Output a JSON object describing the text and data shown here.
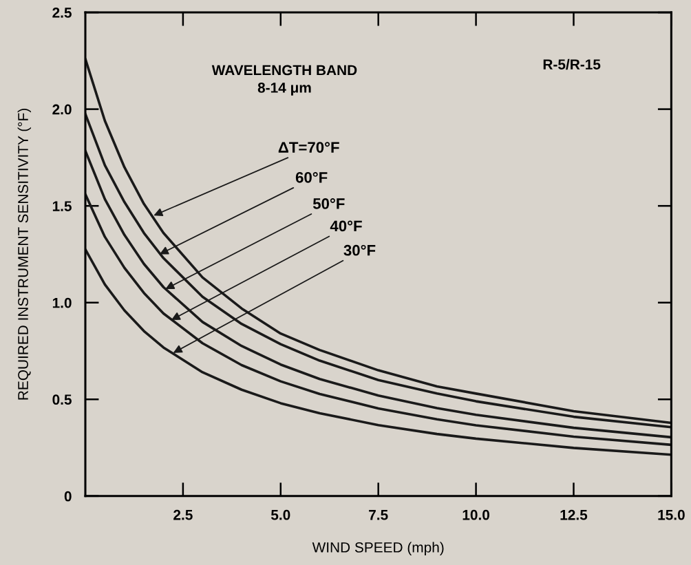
{
  "chart_data": {
    "type": "line",
    "xlabel": "WIND SPEED (mph)",
    "ylabel": "REQUIRED INSTRUMENT SENSITIVITY (°F)",
    "xlim": [
      0,
      15
    ],
    "xticks": [
      2.5,
      {
        "value": 5,
        "label": "5.0"
      },
      7.5,
      {
        "value": 10,
        "label": "10.0"
      },
      12.5,
      {
        "value": 15,
        "label": "15.0"
      }
    ],
    "ylim": [
      0,
      2.5
    ],
    "yticks": [
      0,
      0.5,
      {
        "value": 1,
        "label": "1.0"
      },
      1.5,
      {
        "value": 2,
        "label": "2.0"
      },
      2.5
    ],
    "grid": false,
    "legend": false,
    "line_style": "solid",
    "marker": "none",
    "x": [
      0,
      0.5,
      1,
      1.5,
      2,
      3,
      4,
      5,
      6,
      7.5,
      9,
      10,
      12.5,
      15
    ],
    "series": [
      {
        "color": "#1a1a1a",
        "values": [
          2.26,
          1.94,
          1.7,
          1.51,
          1.36,
          1.13,
          0.97,
          0.84,
          0.755,
          0.65,
          0.567,
          0.53,
          0.439,
          0.378
        ]
      },
      {
        "color": "#1a1a1a",
        "values": [
          1.975,
          1.71,
          1.52,
          1.36,
          1.23,
          1.03,
          0.89,
          0.785,
          0.7,
          0.6,
          0.53,
          0.49,
          0.41,
          0.356
        ]
      },
      {
        "color": "#1a1a1a",
        "values": [
          1.785,
          1.535,
          1.35,
          1.2,
          1.08,
          0.9,
          0.776,
          0.68,
          0.605,
          0.52,
          0.455,
          0.42,
          0.353,
          0.304
        ]
      },
      {
        "color": "#1a1a1a",
        "values": [
          1.56,
          1.34,
          1.18,
          1.05,
          0.944,
          0.79,
          0.677,
          0.593,
          0.528,
          0.453,
          0.397,
          0.366,
          0.307,
          0.265
        ]
      },
      {
        "color": "#1a1a1a",
        "values": [
          1.275,
          1.094,
          0.96,
          0.853,
          0.768,
          0.64,
          0.55,
          0.48,
          0.428,
          0.367,
          0.321,
          0.297,
          0.249,
          0.214
        ]
      }
    ],
    "annotations": [
      "WAVELENGTH BAND\n8-14 μm",
      "R-5/R-15",
      {
        "text": "ΔT=70°F",
        "x": 1.75,
        "y": 1.45
      },
      {
        "text": "60°F",
        "x": 1.9,
        "y": 1.25
      },
      {
        "text": "50°F",
        "x": 2.05,
        "y": 1.07
      },
      {
        "text": "40°F",
        "x": 2.2,
        "y": 0.91
      },
      {
        "text": "30°F",
        "x": 2.25,
        "y": 0.74
      }
    ]
  }
}
